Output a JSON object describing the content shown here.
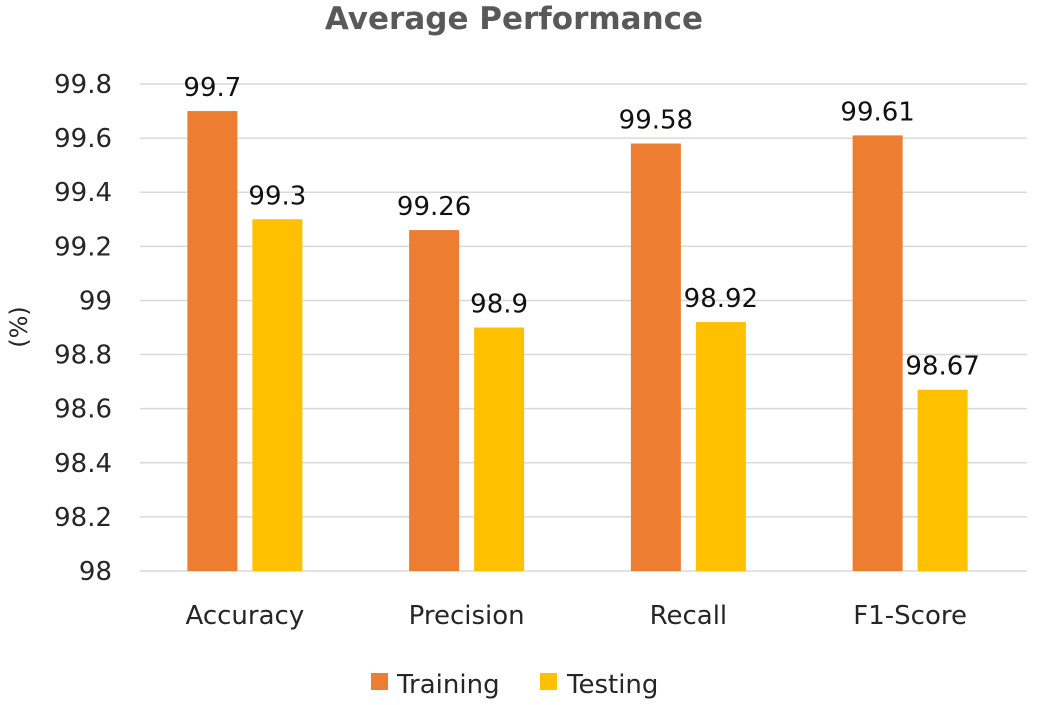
{
  "chart_data": {
    "type": "bar",
    "title": "Average Performance",
    "ylabel": "(%)",
    "xlabel": "",
    "categories": [
      "Accuracy",
      "Precision",
      "Recall",
      "F1-Score"
    ],
    "series": [
      {
        "name": "Training",
        "color": "#ED7D31",
        "values": [
          99.7,
          99.26,
          99.58,
          99.61
        ]
      },
      {
        "name": "Testing",
        "color": "#FFC000",
        "values": [
          99.3,
          98.9,
          98.92,
          98.67
        ]
      }
    ],
    "data_labels": [
      [
        "99.7",
        "99.26",
        "99.58",
        "99.61"
      ],
      [
        "99.3",
        "98.9",
        "98.92",
        "98.67"
      ]
    ],
    "ylim": [
      98,
      99.8
    ],
    "yticks": [
      "98",
      "98.2",
      "98.4",
      "98.6",
      "98.8",
      "99",
      "99.2",
      "99.4",
      "99.6",
      "99.8"
    ],
    "grid": true,
    "legend_position": "bottom"
  }
}
